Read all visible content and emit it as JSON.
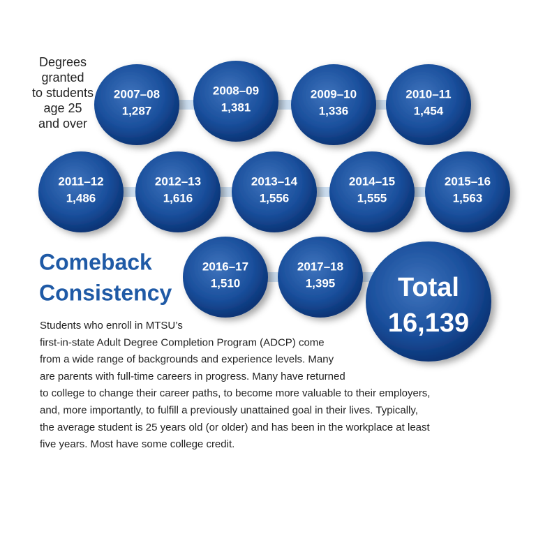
{
  "side_label": [
    "Degrees",
    "granted",
    "to students",
    "age 25",
    "and over"
  ],
  "bubbles": [
    {
      "period": "2007–08",
      "count": "1,287"
    },
    {
      "period": "2008–09",
      "count": "1,381"
    },
    {
      "period": "2009–10",
      "count": "1,336"
    },
    {
      "period": "2010–11",
      "count": "1,454"
    },
    {
      "period": "2011–12",
      "count": "1,486"
    },
    {
      "period": "2012–13",
      "count": "1,616"
    },
    {
      "period": "2013–14",
      "count": "1,556"
    },
    {
      "period": "2014–15",
      "count": "1,555"
    },
    {
      "period": "2015–16",
      "count": "1,563"
    },
    {
      "period": "2016–17",
      "count": "1,510"
    },
    {
      "period": "2017–18",
      "count": "1,395"
    }
  ],
  "total": {
    "label": "Total",
    "count": "16,139"
  },
  "heading": [
    "Comeback",
    "Consistency"
  ],
  "body": [
    "Students who enroll in MTSU’s",
    "first-in-state Adult Degree Completion Program (ADCP) come",
    "from a wide range of backgrounds and experience levels. Many",
    "are parents with full-time careers in progress. Many have returned",
    "to college to change their career paths, to become more valuable to their employers,",
    "and, more importantly, to fulfill a previously unattained goal in their lives. Typically,",
    "the average student is 25 years old (or older) and has been in the workplace at least",
    "five years. Most have some college credit."
  ]
}
